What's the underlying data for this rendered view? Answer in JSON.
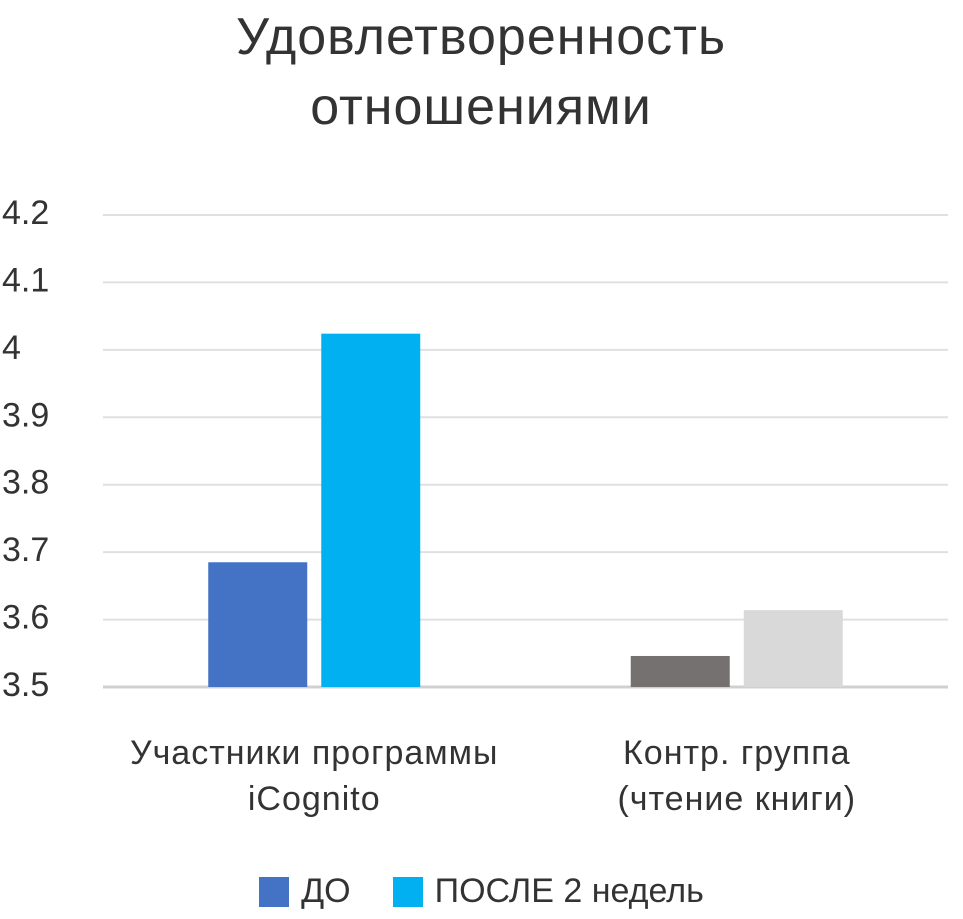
{
  "chart_data": {
    "type": "bar",
    "title": "Удовлетворенность отношениями",
    "categories": [
      "Участники программы iCognito",
      "Контр. группа (чтение книги)"
    ],
    "series": [
      {
        "name": "ДО",
        "color": "#4472c4",
        "colors": [
          "#4472c4",
          "#767171"
        ],
        "values": [
          3.685,
          3.546
        ]
      },
      {
        "name": "ПОСЛЕ 2 недель",
        "color": "#00b0f0",
        "colors": [
          "#00b0f0",
          "#d9d9d9"
        ],
        "values": [
          4.024,
          3.614
        ]
      }
    ],
    "ylim": [
      3.5,
      4.2
    ],
    "yticks": [
      3.5,
      3.6,
      3.7,
      3.8,
      3.9,
      4,
      4.1,
      4.2
    ],
    "grid": true
  }
}
